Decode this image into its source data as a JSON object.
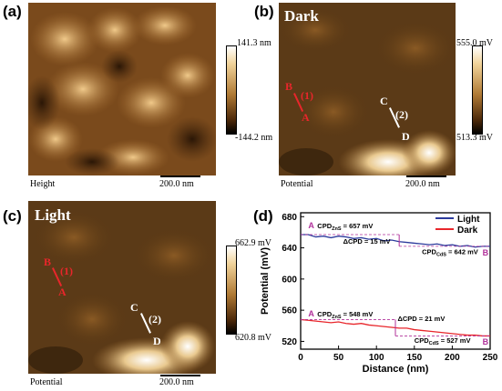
{
  "panels": {
    "a": {
      "label": "(a)",
      "caption": "Height",
      "cb_max": "141.3 nm",
      "cb_min": "-144.2 nm",
      "scale": "200.0 nm"
    },
    "b": {
      "label": "(b)",
      "title": "Dark",
      "caption": "Potential",
      "cb_max": "555.0 mV",
      "cb_min": "513.3 mV",
      "scale": "200.0 nm",
      "markers": {
        "B": "B",
        "A": "A",
        "one": "(1)",
        "C": "C",
        "D": "D",
        "two": "(2)"
      }
    },
    "c": {
      "label": "(c)",
      "title": "Light",
      "caption": "Potential",
      "cb_max": "662.9 mV",
      "cb_min": "620.8 mV",
      "scale": "200.0 nm",
      "markers": {
        "B": "B",
        "A": "A",
        "one": "(1)",
        "C": "C",
        "D": "D",
        "two": "(2)"
      }
    },
    "d": {
      "label": "(d)"
    }
  },
  "colors": {
    "light": "#2b3a9c",
    "dark": "#e8262b",
    "marker": "#b0309a"
  },
  "chart_data": {
    "type": "line",
    "xlabel": "Distance (nm)",
    "ylabel": "Potential (mV)",
    "xlim": [
      0,
      250
    ],
    "ylim": [
      510,
      685
    ],
    "xticks": [
      0,
      50,
      100,
      150,
      200,
      250
    ],
    "yticks": [
      520,
      560,
      600,
      640,
      680
    ],
    "legend_position": "top-right",
    "series": [
      {
        "name": "Light",
        "color": "#2b3a9c",
        "x": [
          0,
          10,
          20,
          30,
          40,
          50,
          60,
          70,
          80,
          90,
          100,
          110,
          120,
          130,
          140,
          150,
          160,
          170,
          180,
          190,
          200,
          210,
          220,
          230,
          240,
          250
        ],
        "values": [
          657,
          657,
          654,
          655,
          653,
          655,
          654,
          652,
          653,
          651,
          652,
          649,
          650,
          648,
          647,
          646,
          645,
          644,
          645,
          643,
          644,
          642,
          643,
          641,
          642,
          642
        ]
      },
      {
        "name": "Dark",
        "color": "#e8262b",
        "x": [
          0,
          10,
          20,
          30,
          40,
          50,
          60,
          70,
          80,
          90,
          100,
          110,
          120,
          130,
          140,
          150,
          160,
          170,
          180,
          190,
          200,
          210,
          220,
          230,
          240,
          250
        ],
        "values": [
          548,
          547,
          546,
          545,
          544,
          545,
          543,
          542,
          543,
          541,
          540,
          539,
          538,
          537,
          537,
          535,
          534,
          533,
          532,
          531,
          530,
          529,
          528,
          528,
          527,
          527
        ]
      }
    ],
    "annotations": {
      "light_A": "A",
      "light_B": "B",
      "light_cpd_zns_pre": "CPD",
      "light_cpd_zns_sub": "ZnS",
      "light_cpd_zns_val": " = 657 mV",
      "light_delta": "ΔCPD = 15 mV",
      "light_cpd_cds_pre": "CPD",
      "light_cpd_cds_sub": "CdS",
      "light_cpd_cds_val": " = 642 mV",
      "dark_A": "A",
      "dark_B": "B",
      "dark_cpd_zns_pre": "CPD",
      "dark_cpd_zns_sub": "ZnS",
      "dark_cpd_zns_val": " = 548 mV",
      "dark_delta": "ΔCPD = 21 mV",
      "dark_cpd_cds_pre": "CPD",
      "dark_cpd_cds_sub": "CdS",
      "dark_cpd_cds_val": " = 527 mV"
    }
  }
}
